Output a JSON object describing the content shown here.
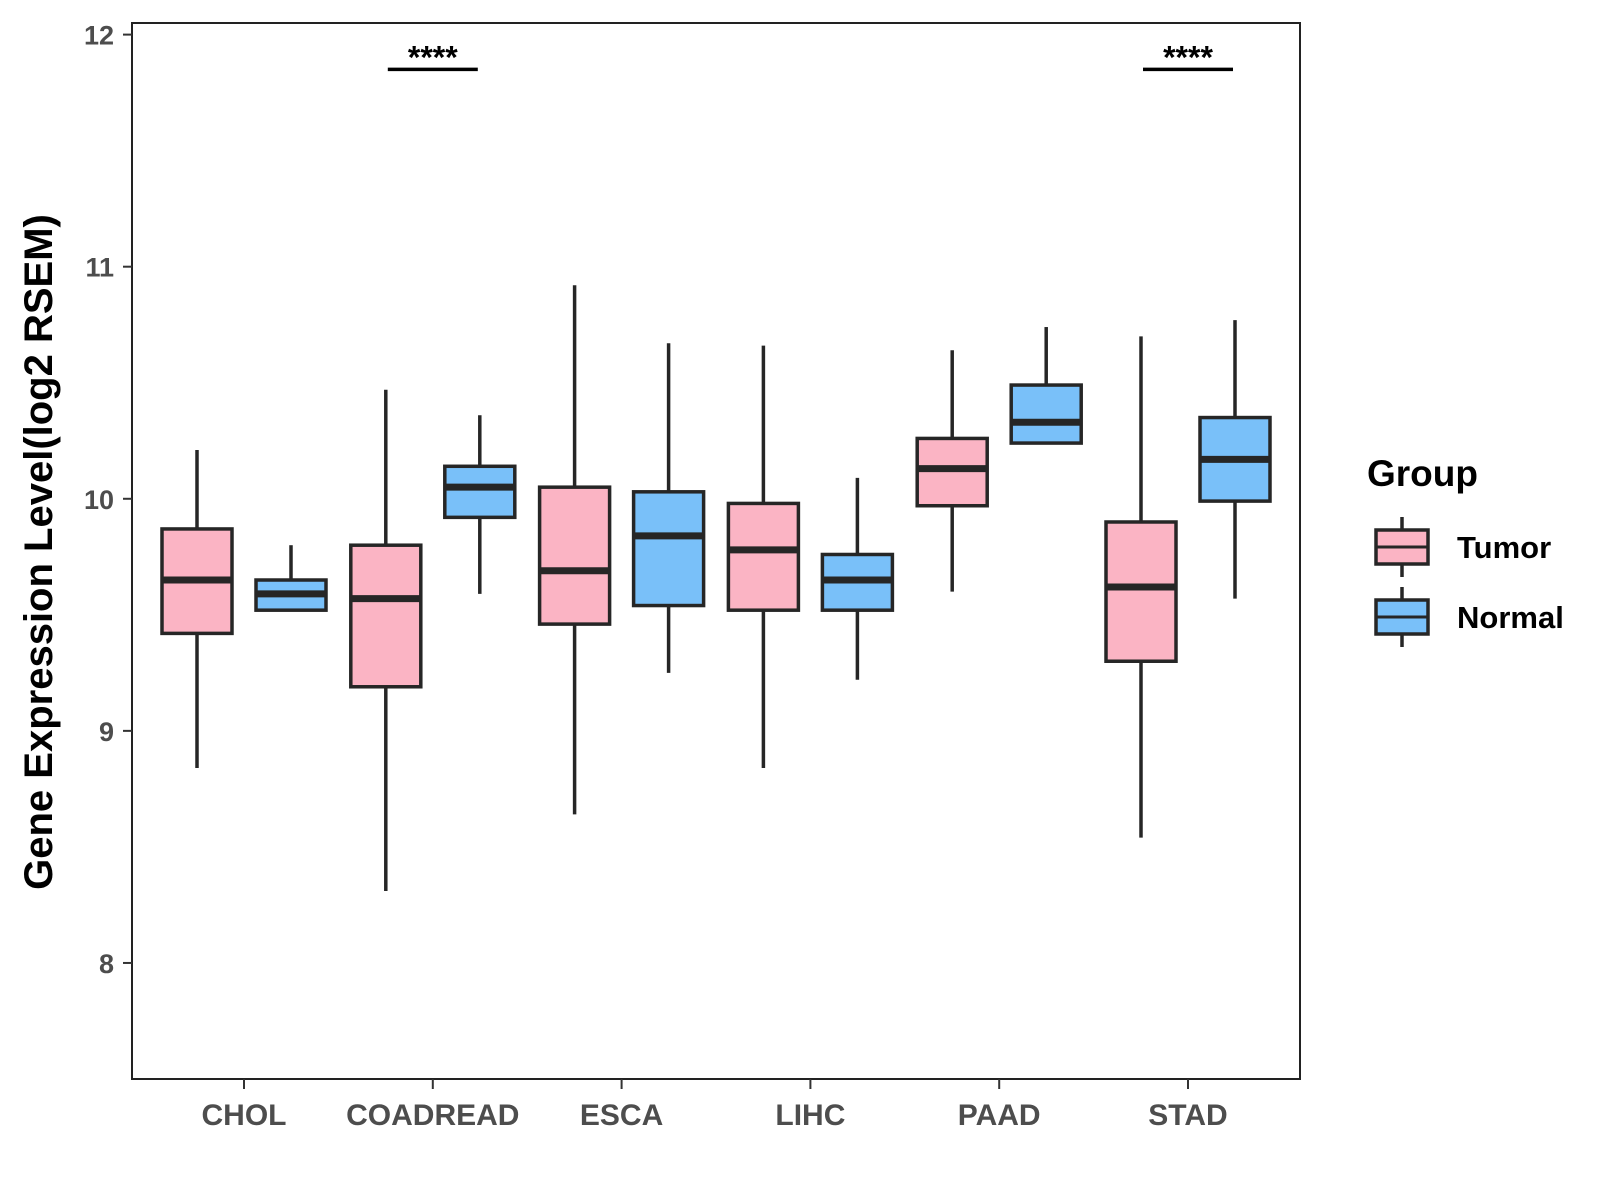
{
  "chart_data": {
    "type": "boxplot",
    "title": "",
    "xlabel": "",
    "ylabel": "Gene Expression Level(log2 RSEM)",
    "ylim": [
      7.5,
      12.05
    ],
    "yticks": [
      8,
      9,
      10,
      11,
      12
    ],
    "grid": false,
    "categories": [
      "CHOL",
      "COADREAD",
      "ESCA",
      "LIHC",
      "PAAD",
      "STAD"
    ],
    "legend": {
      "title": "Group",
      "position": "right",
      "entries": [
        {
          "name": "Tumor",
          "color": "#FBB4C4"
        },
        {
          "name": "Normal",
          "color": "#79C0F9"
        }
      ]
    },
    "series": [
      {
        "name": "Tumor",
        "color": "#FBB4C4",
        "boxes": [
          {
            "category": "CHOL",
            "whisker_low": 8.84,
            "q1": 9.42,
            "median": 9.65,
            "q3": 9.87,
            "whisker_high": 10.21
          },
          {
            "category": "COADREAD",
            "whisker_low": 8.31,
            "q1": 9.19,
            "median": 9.57,
            "q3": 9.8,
            "whisker_high": 10.47
          },
          {
            "category": "ESCA",
            "whisker_low": 8.64,
            "q1": 9.46,
            "median": 9.69,
            "q3": 10.05,
            "whisker_high": 10.92
          },
          {
            "category": "LIHC",
            "whisker_low": 8.84,
            "q1": 9.52,
            "median": 9.78,
            "q3": 9.98,
            "whisker_high": 10.66
          },
          {
            "category": "PAAD",
            "whisker_low": 9.6,
            "q1": 9.97,
            "median": 10.13,
            "q3": 10.26,
            "whisker_high": 10.64
          },
          {
            "category": "STAD",
            "whisker_low": 8.54,
            "q1": 9.3,
            "median": 9.62,
            "q3": 9.9,
            "whisker_high": 10.7
          }
        ]
      },
      {
        "name": "Normal",
        "color": "#79C0F9",
        "boxes": [
          {
            "category": "CHOL",
            "whisker_low": 9.52,
            "q1": 9.52,
            "median": 9.59,
            "q3": 9.65,
            "whisker_high": 9.8
          },
          {
            "category": "COADREAD",
            "whisker_low": 9.59,
            "q1": 9.92,
            "median": 10.05,
            "q3": 10.14,
            "whisker_high": 10.36
          },
          {
            "category": "ESCA",
            "whisker_low": 9.25,
            "q1": 9.54,
            "median": 9.84,
            "q3": 10.03,
            "whisker_high": 10.67
          },
          {
            "category": "LIHC",
            "whisker_low": 9.22,
            "q1": 9.52,
            "median": 9.65,
            "q3": 9.76,
            "whisker_high": 10.09
          },
          {
            "category": "PAAD",
            "whisker_low": 10.24,
            "q1": 10.24,
            "median": 10.33,
            "q3": 10.49,
            "whisker_high": 10.74
          },
          {
            "category": "STAD",
            "whisker_low": 9.57,
            "q1": 9.99,
            "median": 10.17,
            "q3": 10.35,
            "whisker_high": 10.77
          }
        ]
      }
    ],
    "annotations": [
      {
        "category": "COADREAD",
        "label": "****",
        "y": 11.85
      },
      {
        "category": "STAD",
        "label": "****",
        "y": 11.85
      }
    ]
  }
}
